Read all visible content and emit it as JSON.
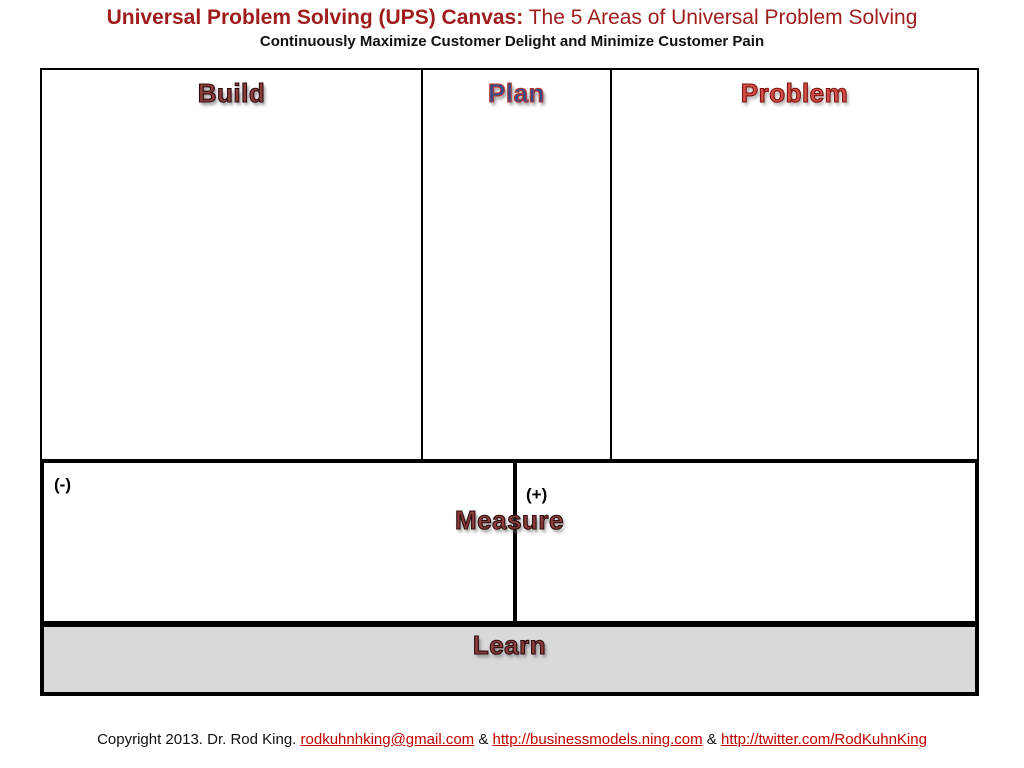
{
  "header": {
    "title_bold": "Universal Problem Solving (UPS) Canvas:",
    "title_regular": " The 5 Areas of Universal Problem Solving",
    "subtitle": "Continuously Maximize Customer Delight and Minimize Customer Pain"
  },
  "canvas": {
    "areas": {
      "build": "Build",
      "plan": "Plan",
      "problem": "Problem",
      "measure": "Measure",
      "learn": "Learn"
    },
    "measure": {
      "negative_label": "(-)",
      "positive_label": "(+)"
    }
  },
  "footer": {
    "copyright_prefix": "Copyright 2013. Dr. Rod King. ",
    "separator": " & ",
    "links": {
      "email": "rodkuhnhking@gmail.com",
      "businessmodels": "http://businessmodels.ning.com",
      "twitter": "http://twitter.com/RodKuhnKing"
    }
  },
  "colors": {
    "title_red": "#9E1C1C",
    "link_red": "#C00000",
    "learn_background": "#D9D9D9",
    "border_black": "#000000",
    "wordart_maroon": "#8E3B3B",
    "wordart_blue": "#3A4A86",
    "wordart_red": "#D14F48"
  }
}
